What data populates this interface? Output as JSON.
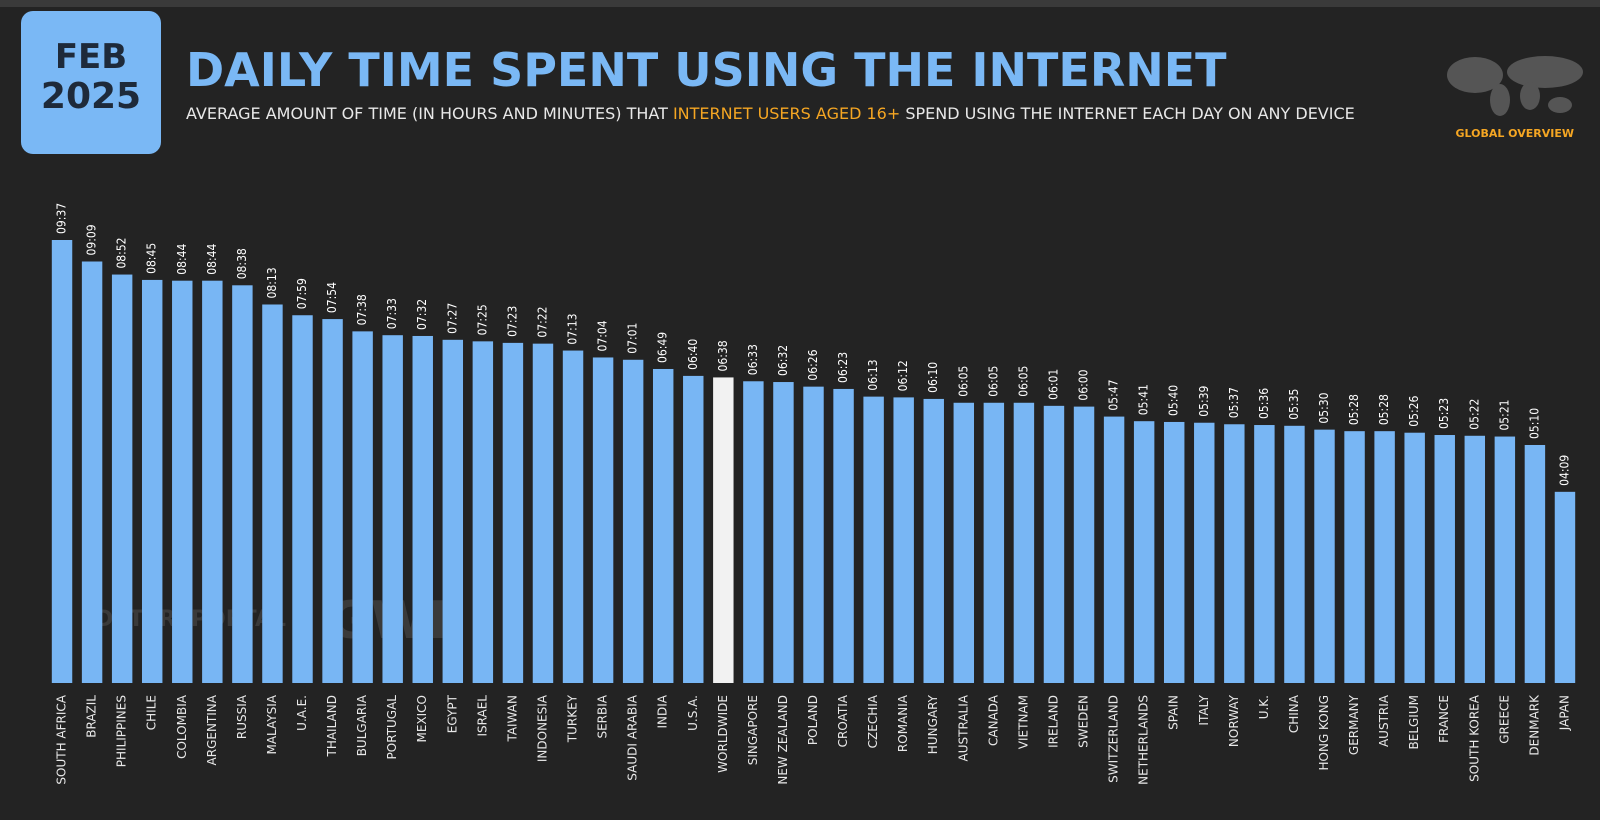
{
  "badge": {
    "month": "FEB",
    "year": "2025"
  },
  "brand": {
    "section": "GLOBAL OVERVIEW",
    "watermark1": "DATAREPORTAL",
    "watermark2": "GWI."
  },
  "chart_data": {
    "type": "bar",
    "title": "DAILY TIME SPENT USING THE INTERNET",
    "subtitle": [
      "AVERAGE AMOUNT OF TIME (IN HOURS AND MINUTES) THAT ",
      "INTERNET USERS AGED 16+",
      " SPEND USING THE INTERNET EACH DAY ON ANY DEVICE"
    ],
    "categories": [
      "SOUTH AFRICA",
      "BRAZIL",
      "PHILIPPINES",
      "CHILE",
      "COLOMBIA",
      "ARGENTINA",
      "RUSSIA",
      "MALAYSIA",
      "U.A.E.",
      "THAILAND",
      "BULGARIA",
      "PORTUGAL",
      "MEXICO",
      "EGYPT",
      "ISRAEL",
      "TAIWAN",
      "INDONESIA",
      "TURKEY",
      "SERBIA",
      "SAUDI ARABIA",
      "INDIA",
      "U.S.A.",
      "WORLDWIDE",
      "SINGAPORE",
      "NEW ZEALAND",
      "POLAND",
      "CROATIA",
      "CZECHIA",
      "ROMANIA",
      "HUNGARY",
      "AUSTRALIA",
      "CANADA",
      "VIETNAM",
      "IRELAND",
      "SWEDEN",
      "SWITZERLAND",
      "NETHERLANDS",
      "SPAIN",
      "ITALY",
      "NORWAY",
      "U.K.",
      "CHINA",
      "HONG KONG",
      "GERMANY",
      "AUSTRIA",
      "BELGIUM",
      "FRANCE",
      "SOUTH KOREA",
      "GREECE",
      "DENMARK",
      "JAPAN"
    ],
    "values": [
      577,
      549,
      532,
      525,
      524,
      524,
      518,
      493,
      479,
      474,
      458,
      453,
      452,
      447,
      445,
      443,
      442,
      433,
      424,
      421,
      409,
      400,
      398,
      393,
      392,
      386,
      383,
      373,
      372,
      370,
      365,
      365,
      365,
      361,
      360,
      347,
      341,
      340,
      339,
      337,
      336,
      335,
      330,
      328,
      328,
      326,
      323,
      322,
      321,
      310,
      249
    ],
    "value_labels": [
      "09:37",
      "09:09",
      "08:52",
      "08:45",
      "08:44",
      "08:44",
      "08:38",
      "08:13",
      "07:59",
      "07:54",
      "07:38",
      "07:33",
      "07:32",
      "07:27",
      "07:25",
      "07:23",
      "07:22",
      "07:13",
      "07:04",
      "07:01",
      "06:49",
      "06:40",
      "06:38",
      "06:33",
      "06:32",
      "06:26",
      "06:23",
      "06:13",
      "06:12",
      "06:10",
      "06:05",
      "06:05",
      "06:05",
      "06:01",
      "06:00",
      "05:47",
      "05:41",
      "05:40",
      "05:39",
      "05:37",
      "05:36",
      "05:35",
      "05:30",
      "05:28",
      "05:28",
      "05:26",
      "05:23",
      "05:22",
      "05:21",
      "05:10",
      "04:09"
    ],
    "color": "#78b6f4",
    "highlight": {
      "index": 22,
      "color": "#f2f2f2"
    }
  }
}
